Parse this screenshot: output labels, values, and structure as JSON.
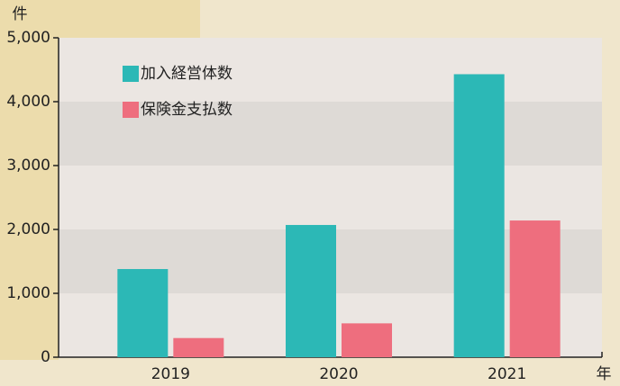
{
  "chart_data": {
    "type": "bar",
    "y_unit": "件",
    "x_unit": "年",
    "categories": [
      "2019",
      "2020",
      "2021"
    ],
    "series": [
      {
        "name": "加入経営体数",
        "color": "#2cb8b6",
        "values": [
          1380,
          2070,
          4430
        ]
      },
      {
        "name": "保険金支払数",
        "color": "#ee6e7e",
        "values": [
          300,
          530,
          2140
        ]
      }
    ],
    "ylim": [
      0,
      5000
    ],
    "yticks": [
      0,
      {
        "value": 1000,
        "label": "1,000"
      },
      {
        "value": 2000,
        "label": "2,000"
      },
      {
        "value": 3000,
        "label": "3,000"
      },
      {
        "value": 4000,
        "label": "4,000"
      },
      {
        "value": 5000,
        "label": "5,000"
      }
    ],
    "grid": true,
    "legend": "upper left"
  }
}
